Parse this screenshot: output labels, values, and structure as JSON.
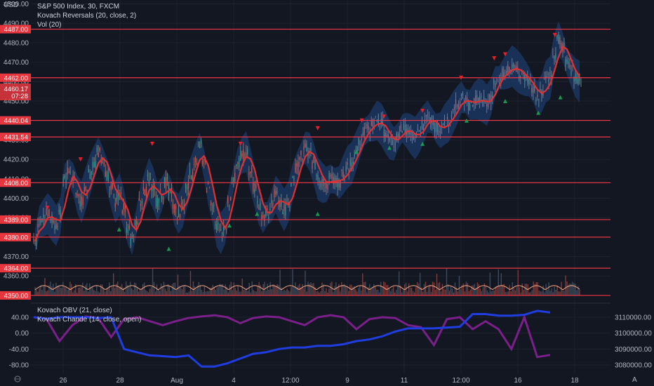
{
  "header": {
    "currency": "USD",
    "main_title": "S&P 500 Index, 30, FXCM",
    "indicator_1": "Kovach Reversals (20, close, 2)",
    "indicator_2": "Vol (20)",
    "lower_1": "Kovach OBV (21, close)",
    "lower_2": "Kovach Chande (14, close, open)"
  },
  "footer": {
    "left_icon": "globe-icon",
    "right_icon": "auto-scale-icon",
    "right_label": "A"
  },
  "colors": {
    "background": "#131722",
    "grid": "#1e222d",
    "level_line": "#f23645",
    "up_candle": "#26a69a",
    "down_candle": "#ef5350",
    "ma_line": "#e03030",
    "band_fill": "#1c3a6a",
    "buy_marker": "#1a9850",
    "sell_marker": "#e8202a",
    "volume_ma": "#f4a582",
    "obv_line": "#1f3de0",
    "chande_line": "#7b1f8a",
    "price_tag": "#e8363e"
  },
  "chart_data": [
    {
      "type": "line",
      "name": "price-panel",
      "title": "S&P 500 Index, 30, FXCM",
      "ylim": [
        4346,
        4502
      ],
      "y_ticks": [
        4500,
        4490,
        4480,
        4470,
        4460,
        4450,
        4440,
        4430,
        4420,
        4410,
        4400,
        4390,
        4380,
        4370,
        4360
      ],
      "x_ticks": [
        "26",
        "28",
        "Aug",
        "4",
        "12:00",
        "9",
        "11",
        "12:00",
        "16",
        "18"
      ],
      "levels": [
        4487.0,
        4462.0,
        4440.04,
        4431.54,
        4408.0,
        4389.0,
        4380.0,
        4364.0,
        4350.0
      ],
      "level_labels": [
        "4487.00",
        "4462.00",
        "4440.04",
        "4431.54",
        "4408.00",
        "4389.00",
        "4380.00",
        "4364.00",
        "4350.00"
      ],
      "last_price": "4460.17",
      "countdown": "07:28",
      "close_path": [
        4378,
        4388,
        4390,
        4392,
        4389,
        4386,
        4391,
        4410,
        4414,
        4410,
        4402,
        4398,
        4405,
        4412,
        4418,
        4424,
        4420,
        4412,
        4405,
        4398,
        4402,
        4395,
        4385,
        4378,
        4388,
        4398,
        4404,
        4410,
        4405,
        4398,
        4402,
        4408,
        4404,
        4395,
        4392,
        4396,
        4406,
        4412,
        4420,
        4427,
        4418,
        4406,
        4398,
        4386,
        4382,
        4386,
        4398,
        4410,
        4418,
        4422,
        4424,
        4415,
        4406,
        4396,
        4390,
        4392,
        4396,
        4402,
        4398,
        4394,
        4398,
        4408,
        4416,
        4422,
        4426,
        4424,
        4418,
        4410,
        4408,
        4407,
        4410,
        4409,
        4408,
        4412,
        4416,
        4418,
        4424,
        4430,
        4434,
        4436,
        4438,
        4440,
        4438,
        4434,
        4430,
        4428,
        4432,
        4436,
        4435,
        4433,
        4431,
        4434,
        4438,
        4442,
        4440,
        4436,
        4435,
        4438,
        4440,
        4444,
        4448,
        4452,
        4450,
        4448,
        4450,
        4451,
        4450,
        4448,
        4452,
        4460,
        4462,
        4464,
        4466,
        4468,
        4466,
        4464,
        4462,
        4460,
        4456,
        4452,
        4454,
        4460,
        4462,
        4474,
        4482,
        4478,
        4470,
        4466,
        4462,
        4460
      ],
      "sell_markers": [
        [
          0.03,
          4395
        ],
        [
          0.09,
          4420
        ],
        [
          0.22,
          4428
        ],
        [
          0.38,
          4428
        ],
        [
          0.52,
          4436
        ],
        [
          0.6,
          4440
        ],
        [
          0.64,
          4442
        ],
        [
          0.71,
          4445
        ],
        [
          0.78,
          4462
        ],
        [
          0.84,
          4472
        ],
        [
          0.86,
          4474
        ],
        [
          0.95,
          4484
        ]
      ],
      "buy_markers": [
        [
          0.16,
          4384
        ],
        [
          0.25,
          4374
        ],
        [
          0.36,
          4386
        ],
        [
          0.41,
          4392
        ],
        [
          0.52,
          4392
        ],
        [
          0.59,
          4424
        ],
        [
          0.65,
          4426
        ],
        [
          0.71,
          4428
        ],
        [
          0.79,
          4440
        ],
        [
          0.86,
          4450
        ],
        [
          0.92,
          4444
        ],
        [
          0.96,
          4452
        ]
      ]
    },
    {
      "type": "bar",
      "name": "volume-panel",
      "title": "Vol (20)"
    },
    {
      "type": "line",
      "name": "oscillator-panel",
      "left_ticks": [
        "40.00",
        "0.00",
        "-40.00",
        "-80.00"
      ],
      "left_values": [
        40,
        0,
        -40,
        -80
      ],
      "right_ticks": [
        "3110000.00",
        "3100000.00",
        "3090000.00",
        "3080000.00"
      ],
      "right_values": [
        3110000,
        3100000,
        3090000,
        3080000
      ],
      "series": [
        {
          "name": "Kovach OBV (21, close)",
          "values": [
            3110000,
            3109000,
            3110000,
            3110000,
            3110000,
            3109500,
            3110000,
            3090000,
            3088000,
            3086000,
            3085500,
            3085000,
            3086000,
            3079000,
            3079000,
            3081000,
            3084000,
            3087000,
            3088000,
            3090000,
            3091000,
            3091000,
            3092000,
            3092000,
            3093000,
            3095000,
            3096000,
            3098000,
            3101000,
            3103000,
            3103000,
            3103000,
            3103500,
            3104000,
            3112000,
            3112000,
            3111000,
            3111000,
            3111500,
            3114000,
            3113000
          ]
        },
        {
          "name": "Kovach Chande (14, close, open)",
          "values": [
            40,
            35,
            -20,
            20,
            42,
            38,
            -10,
            35,
            40,
            30,
            20,
            30,
            38,
            42,
            45,
            40,
            25,
            38,
            42,
            40,
            30,
            20,
            40,
            45,
            40,
            10,
            35,
            40,
            38,
            20,
            15,
            -30,
            35,
            40,
            10,
            30,
            10,
            -40,
            40,
            -60,
            -55
          ]
        }
      ]
    }
  ]
}
